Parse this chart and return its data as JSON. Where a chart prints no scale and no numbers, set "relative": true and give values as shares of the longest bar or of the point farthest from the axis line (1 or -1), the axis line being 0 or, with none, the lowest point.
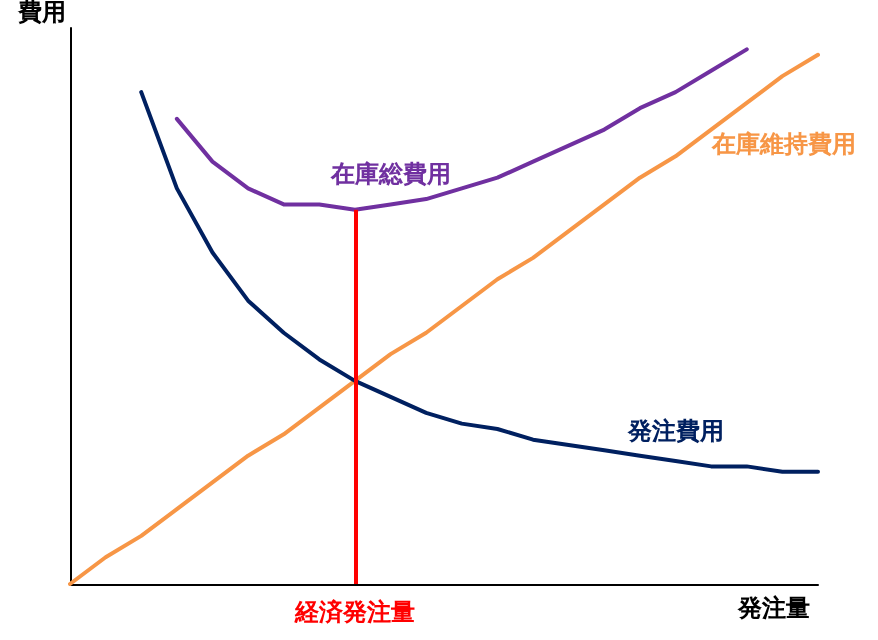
{
  "chart_data": {
    "type": "line",
    "relative": true,
    "xlabel": "発注量",
    "ylabel": "費用",
    "categories": [
      null,
      null,
      null,
      null,
      null,
      null,
      null,
      null,
      null,
      null,
      null,
      null,
      null,
      null,
      null,
      null,
      null,
      null,
      null,
      null,
      null,
      null
    ],
    "series": [
      {
        "name": "在庫総費用",
        "color": "#7030a0",
        "values": [
          null,
          null,
          null,
          0.87,
          0.79,
          0.74,
          0.71,
          0.71,
          0.7,
          0.71,
          0.72,
          0.74,
          0.76,
          0.79,
          0.82,
          0.85,
          0.89,
          0.92,
          0.96,
          1,
          null,
          null
        ]
      },
      {
        "name": "在庫維持費用",
        "color": "#f79646",
        "values": [
          0,
          0.05,
          0.09,
          0.14,
          0.19,
          0.24,
          0.28,
          0.33,
          0.38,
          0.43,
          0.47,
          0.52,
          0.57,
          0.61,
          0.66,
          0.71,
          0.76,
          0.8,
          0.85,
          0.9,
          0.95,
          0.99
        ]
      },
      {
        "name": "発注費用",
        "color": "#002060",
        "values": [
          null,
          null,
          0.92,
          0.74,
          0.62,
          0.53,
          0.47,
          0.42,
          0.38,
          0.35,
          0.32,
          0.3,
          0.29,
          0.27,
          0.26,
          0.25,
          0.24,
          0.23,
          0.22,
          0.22,
          0.21,
          0.21
        ]
      }
    ],
    "annotations": [
      "経済発注量"
    ],
    "legend": false,
    "grid": false,
    "marker": "none",
    "line_style": "solid"
  }
}
